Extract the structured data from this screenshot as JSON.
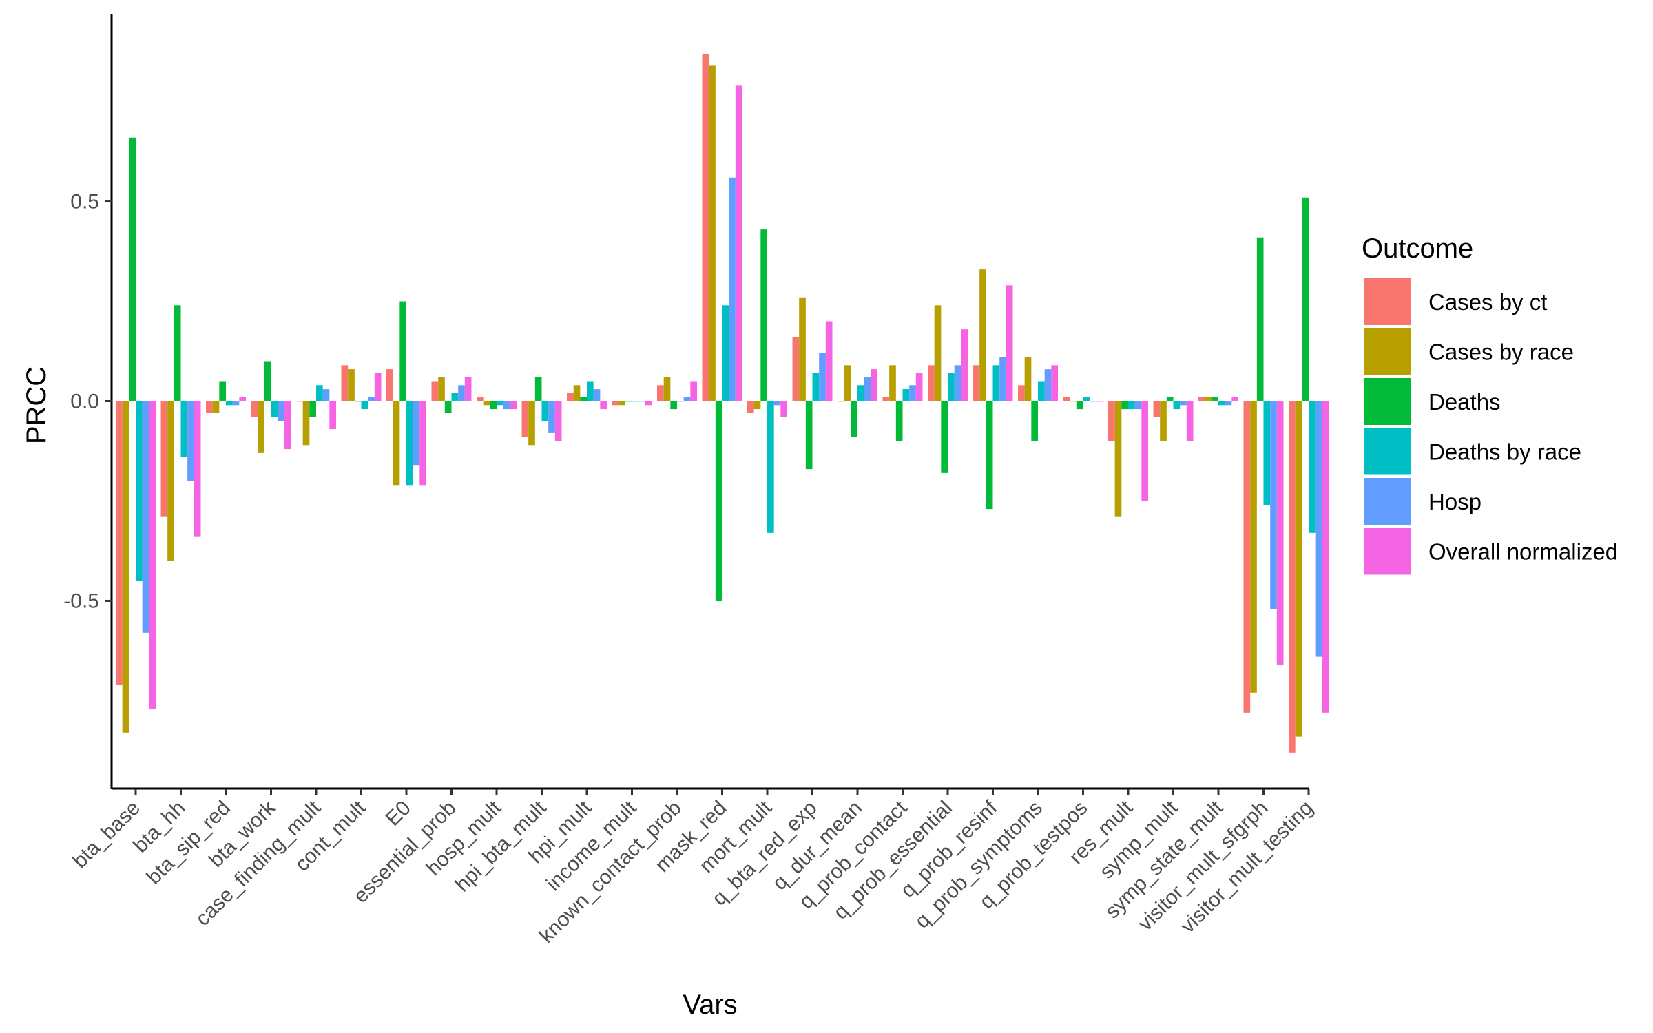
{
  "chart_data": {
    "type": "bar",
    "xlabel": "Vars",
    "ylabel": "PRCC",
    "ylim": [
      -0.97,
      0.97
    ],
    "yticks": [
      -0.5,
      0.0,
      0.5
    ],
    "ytick_labels": [
      "-0.5",
      "0.0",
      "0.5"
    ],
    "grid": false,
    "legend": {
      "title": "Outcome",
      "position": "right"
    },
    "categories": [
      "bta_base",
      "bta_hh",
      "bta_sip_red",
      "bta_work",
      "case_finding_mult",
      "cont_mult",
      "E0",
      "essential_prob",
      "hosp_mult",
      "hpi_bta_mult",
      "hpi_mult",
      "income_mult",
      "known_contact_prob",
      "mask_red",
      "mort_mult",
      "q_bta_red_exp",
      "q_dur_mean",
      "q_prob_contact",
      "q_prob_essential",
      "q_prob_resinf",
      "q_prob_symptoms",
      "q_prob_testpos",
      "res_mult",
      "symp_mult",
      "symp_state_mult",
      "visitor_mult_sfgrph",
      "visitor_mult_testing"
    ],
    "series": [
      {
        "name": "Cases by ct",
        "color": "#F8766D",
        "values": [
          -0.71,
          -0.29,
          -0.03,
          -0.04,
          0.0,
          0.09,
          0.08,
          0.05,
          0.01,
          -0.09,
          0.02,
          -0.01,
          0.04,
          0.87,
          -0.03,
          0.16,
          0.0,
          0.01,
          0.09,
          0.09,
          0.04,
          0.01,
          -0.1,
          -0.04,
          0.01,
          -0.78,
          -0.88
        ]
      },
      {
        "name": "Cases by race",
        "color": "#B79F00",
        "values": [
          -0.83,
          -0.4,
          -0.03,
          -0.13,
          -0.11,
          0.08,
          -0.21,
          0.06,
          -0.01,
          -0.11,
          0.04,
          -0.01,
          0.06,
          0.84,
          -0.02,
          0.26,
          0.09,
          0.09,
          0.24,
          0.33,
          0.11,
          0.0,
          -0.29,
          -0.1,
          0.01,
          -0.73,
          -0.84
        ]
      },
      {
        "name": "Deaths",
        "color": "#00BA38",
        "values": [
          0.66,
          0.24,
          0.05,
          0.1,
          -0.04,
          0.0,
          0.25,
          -0.03,
          -0.02,
          0.06,
          0.01,
          0.0,
          -0.02,
          -0.5,
          0.43,
          -0.17,
          -0.09,
          -0.1,
          -0.18,
          -0.27,
          -0.1,
          -0.02,
          -0.02,
          0.01,
          0.01,
          0.41,
          0.51
        ]
      },
      {
        "name": "Deaths by race",
        "color": "#00BFC4",
        "values": [
          -0.45,
          -0.14,
          -0.01,
          -0.04,
          0.04,
          -0.02,
          -0.21,
          0.02,
          -0.01,
          -0.05,
          0.05,
          0.0,
          0.0,
          0.24,
          -0.33,
          0.07,
          0.04,
          0.03,
          0.07,
          0.09,
          0.05,
          0.01,
          -0.02,
          -0.02,
          -0.01,
          -0.26,
          -0.33
        ]
      },
      {
        "name": "Hosp",
        "color": "#619CFF",
        "values": [
          -0.58,
          -0.2,
          -0.01,
          -0.05,
          0.03,
          0.01,
          -0.16,
          0.04,
          -0.02,
          -0.08,
          0.03,
          0.0,
          0.01,
          0.56,
          -0.01,
          0.12,
          0.06,
          0.04,
          0.09,
          0.11,
          0.08,
          0.0,
          -0.02,
          -0.01,
          -0.01,
          -0.52,
          -0.64
        ]
      },
      {
        "name": "Overall normalized",
        "color": "#F564E3",
        "values": [
          -0.77,
          -0.34,
          0.01,
          -0.12,
          -0.07,
          0.07,
          -0.21,
          0.06,
          -0.02,
          -0.1,
          -0.02,
          -0.01,
          0.05,
          0.79,
          -0.04,
          0.2,
          0.08,
          0.07,
          0.18,
          0.29,
          0.09,
          0.0,
          -0.25,
          -0.1,
          0.01,
          -0.66,
          -0.78
        ]
      }
    ]
  }
}
